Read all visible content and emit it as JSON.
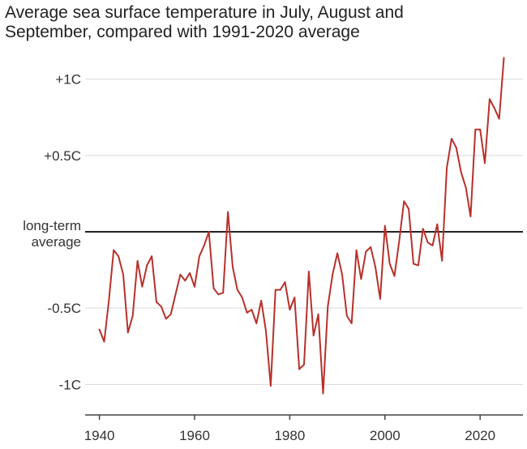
{
  "title_lines": [
    "Average sea surface temperature in July, August and",
    "September, compared with 1991-2020 average"
  ],
  "colors": {
    "line": "#b8302a",
    "baseline": "#222222",
    "grid": "#d9d9d9",
    "axis": "#444444"
  },
  "chart_data": {
    "type": "line",
    "title": "Average sea surface temperature in July, August and September, compared with 1991-2020 average",
    "xlabel": "",
    "ylabel": "",
    "xlim": [
      1937,
      2029
    ],
    "ylim": [
      -1.2,
      1.2
    ],
    "x_ticks": [
      1940,
      1960,
      1980,
      2000,
      2020
    ],
    "x_tick_labels": [
      "1940",
      "1960",
      "1980",
      "2000",
      "2020"
    ],
    "y_ticks": [
      1.0,
      0.5,
      -0.5,
      -1.0
    ],
    "y_tick_labels": [
      "+1C",
      "+0.5C",
      "-0.5C",
      "-1C"
    ],
    "baseline": {
      "value": 0,
      "label_lines": [
        "long-term",
        "average"
      ]
    },
    "grid": true,
    "series": [
      {
        "x": [
          1940,
          1941,
          1942,
          1943,
          1944,
          1945,
          1946,
          1947,
          1948,
          1949,
          1950,
          1951,
          1952,
          1953,
          1954,
          1955,
          1956,
          1957,
          1958,
          1959,
          1960,
          1961,
          1962,
          1963,
          1964,
          1965,
          1966,
          1967,
          1968,
          1969,
          1970,
          1971,
          1972,
          1973,
          1974,
          1975,
          1976,
          1977,
          1978,
          1979,
          1980,
          1981,
          1982,
          1983,
          1984,
          1985,
          1986,
          1987,
          1988,
          1989,
          1990,
          1991,
          1992,
          1993,
          1994,
          1995,
          1996,
          1997,
          1998,
          1999,
          2000,
          2001,
          2002,
          2003,
          2004,
          2005,
          2006,
          2007,
          2008,
          2009,
          2010,
          2011,
          2012,
          2013,
          2014,
          2015,
          2016,
          2017,
          2018,
          2019,
          2020,
          2021,
          2022,
          2023,
          2024,
          2025
        ],
        "values": [
          -0.64,
          -0.72,
          -0.45,
          -0.12,
          -0.16,
          -0.28,
          -0.66,
          -0.55,
          -0.19,
          -0.36,
          -0.22,
          -0.16,
          -0.46,
          -0.49,
          -0.57,
          -0.54,
          -0.41,
          -0.28,
          -0.32,
          -0.27,
          -0.36,
          -0.16,
          -0.09,
          0.0,
          -0.37,
          -0.41,
          -0.4,
          0.13,
          -0.23,
          -0.38,
          -0.43,
          -0.53,
          -0.51,
          -0.6,
          -0.45,
          -0.65,
          -1.01,
          -0.38,
          -0.38,
          -0.33,
          -0.51,
          -0.43,
          -0.9,
          -0.87,
          -0.26,
          -0.68,
          -0.54,
          -1.06,
          -0.49,
          -0.28,
          -0.14,
          -0.28,
          -0.55,
          -0.6,
          -0.12,
          -0.31,
          -0.13,
          -0.1,
          -0.23,
          -0.44,
          0.04,
          -0.21,
          -0.29,
          -0.06,
          0.2,
          0.15,
          -0.21,
          -0.22,
          0.02,
          -0.07,
          -0.09,
          0.05,
          -0.19,
          0.42,
          0.61,
          0.55,
          0.39,
          0.29,
          0.1,
          0.67,
          0.67,
          0.45,
          0.87,
          0.81,
          0.74,
          1.14
        ]
      }
    ]
  }
}
